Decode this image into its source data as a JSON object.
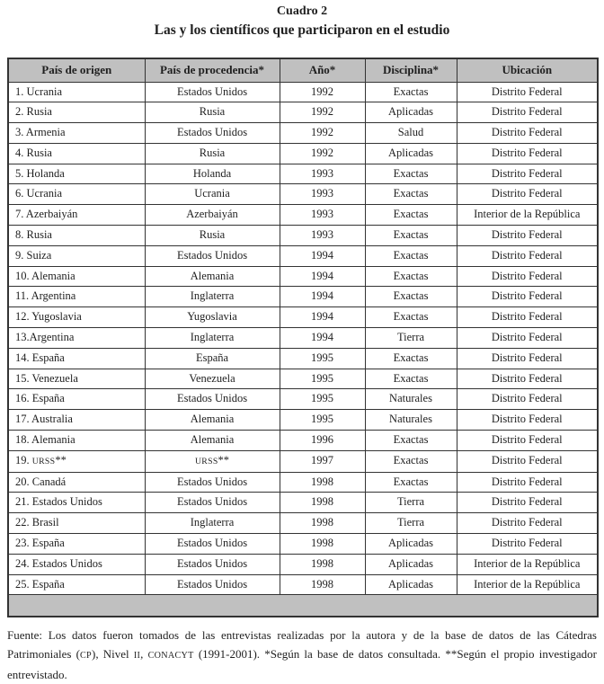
{
  "title": {
    "line1": "Cuadro 2",
    "line2": "Las y los científicos que participaron en el estudio"
  },
  "table": {
    "headers": [
      "País de origen",
      "País de procedencia*",
      "Año*",
      "Disciplina*",
      "Ubicación"
    ],
    "rows": [
      [
        "1. Ucrania",
        "Estados Unidos",
        "1992",
        "Exactas",
        "Distrito Federal"
      ],
      [
        "2. Rusia",
        "Rusia",
        "1992",
        "Aplicadas",
        "Distrito Federal"
      ],
      [
        "3. Armenia",
        "Estados Unidos",
        "1992",
        "Salud",
        "Distrito Federal"
      ],
      [
        "4. Rusia",
        "Rusia",
        "1992",
        "Aplicadas",
        "Distrito Federal"
      ],
      [
        "5. Holanda",
        "Holanda",
        "1993",
        "Exactas",
        "Distrito Federal"
      ],
      [
        "6. Ucrania",
        "Ucrania",
        "1993",
        "Exactas",
        "Distrito Federal"
      ],
      [
        "7. Azerbaiyán",
        "Azerbaiyán",
        "1993",
        "Exactas",
        "Interior de la República"
      ],
      [
        "8. Rusia",
        "Rusia",
        "1993",
        "Exactas",
        "Distrito Federal"
      ],
      [
        "9. Suiza",
        "Estados Unidos",
        "1994",
        "Exactas",
        "Distrito Federal"
      ],
      [
        "10. Alemania",
        "Alemania",
        "1994",
        "Exactas",
        "Distrito Federal"
      ],
      [
        "11. Argentina",
        "Inglaterra",
        "1994",
        "Exactas",
        "Distrito Federal"
      ],
      [
        "12. Yugoslavia",
        "Yugoslavia",
        "1994",
        "Exactas",
        "Distrito Federal"
      ],
      [
        "13.Argentina",
        "Inglaterra",
        "1994",
        "Tierra",
        "Distrito Federal"
      ],
      [
        "14. España",
        "España",
        "1995",
        "Exactas",
        "Distrito Federal"
      ],
      [
        "15. Venezuela",
        "Venezuela",
        "1995",
        "Exactas",
        "Distrito Federal"
      ],
      [
        "16. España",
        "Estados Unidos",
        "1995",
        "Naturales",
        "Distrito Federal"
      ],
      [
        "17. Australia",
        "Alemania",
        "1995",
        "Naturales",
        "Distrito Federal"
      ],
      [
        "18. Alemania",
        "Alemania",
        "1996",
        "Exactas",
        "Distrito Federal"
      ],
      [
        "19. URSS**",
        "URSS**",
        "1997",
        "Exactas",
        "Distrito Federal"
      ],
      [
        "20. Canadá",
        "Estados Unidos",
        "1998",
        "Exactas",
        "Distrito Federal"
      ],
      [
        "21. Estados Unidos",
        "Estados Unidos",
        "1998",
        "Tierra",
        "Distrito Federal"
      ],
      [
        "22. Brasil",
        "Inglaterra",
        "1998",
        "Tierra",
        "Distrito Federal"
      ],
      [
        "23. España",
        "Estados Unidos",
        "1998",
        "Aplicadas",
        "Distrito Federal"
      ],
      [
        "24. Estados Unidos",
        "Estados Unidos",
        "1998",
        "Aplicadas",
        "Interior de la República"
      ],
      [
        "25. España",
        "Estados Unidos",
        "1998",
        "Aplicadas",
        "Interior de la República"
      ]
    ],
    "has_empty_gray_footer_row": true
  },
  "note": "Fuente: Los datos fueron tomados de las entrevistas realizadas por la autora y de la base de datos de las Cátedras Patrimoniales (CP), Nivel II, CONACYT (1991-2001). *Según la base de datos consultada. **Según el propio investigador entrevistado.",
  "smallcaps_tokens": [
    "URSS",
    "CONACYT",
    "CP",
    "II"
  ],
  "colors": {
    "header_bg": "#c0c0c0",
    "border": "#333333",
    "text": "#1f1f1f",
    "page_bg": "#ffffff"
  }
}
